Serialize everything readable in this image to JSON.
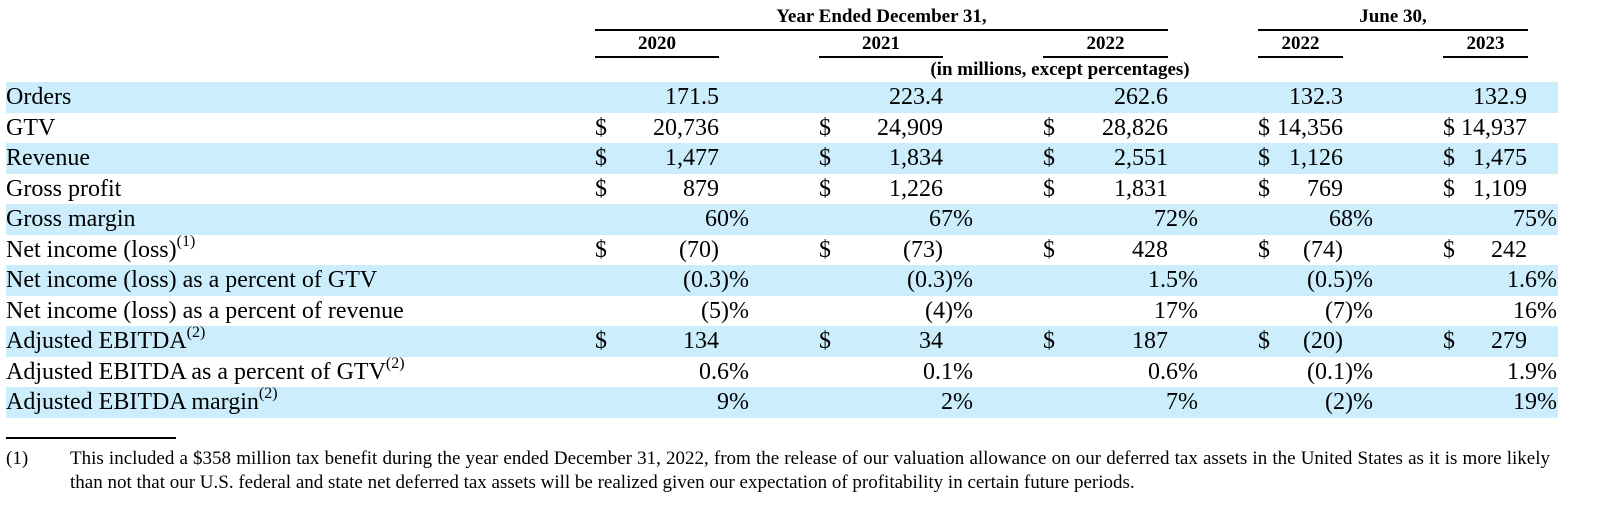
{
  "header": {
    "group_year": "Year Ended December 31,",
    "group_june": "June 30,",
    "years": [
      "2020",
      "2021",
      "2022",
      "2022",
      "2023"
    ],
    "units": "(in millions, except percentages)"
  },
  "rows": [
    {
      "label": "Orders",
      "sup": "",
      "cells": [
        {
          "d": "",
          "v": "171.5"
        },
        {
          "d": "",
          "v": "223.4"
        },
        {
          "d": "",
          "v": "262.6"
        },
        {
          "d": "",
          "v": "132.3"
        },
        {
          "d": "",
          "v": "132.9"
        }
      ]
    },
    {
      "label": "GTV",
      "sup": "",
      "cells": [
        {
          "d": "$",
          "v": "20,736"
        },
        {
          "d": "$",
          "v": "24,909"
        },
        {
          "d": "$",
          "v": "28,826"
        },
        {
          "d": "$",
          "v": "14,356"
        },
        {
          "d": "$",
          "v": "14,937"
        }
      ]
    },
    {
      "label": "Revenue",
      "sup": "",
      "cells": [
        {
          "d": "$",
          "v": "1,477"
        },
        {
          "d": "$",
          "v": "1,834"
        },
        {
          "d": "$",
          "v": "2,551"
        },
        {
          "d": "$",
          "v": "1,126"
        },
        {
          "d": "$",
          "v": "1,475"
        }
      ]
    },
    {
      "label": "Gross profit",
      "sup": "",
      "cells": [
        {
          "d": "$",
          "v": "879"
        },
        {
          "d": "$",
          "v": "1,226"
        },
        {
          "d": "$",
          "v": "1,831"
        },
        {
          "d": "$",
          "v": "769"
        },
        {
          "d": "$",
          "v": "1,109"
        }
      ]
    },
    {
      "label": "Gross margin",
      "sup": "",
      "cells": [
        {
          "d": "",
          "v": "60%"
        },
        {
          "d": "",
          "v": "67%"
        },
        {
          "d": "",
          "v": "72%"
        },
        {
          "d": "",
          "v": "68%"
        },
        {
          "d": "",
          "v": "75%"
        }
      ]
    },
    {
      "label": "Net income (loss)",
      "sup": "(1)",
      "cells": [
        {
          "d": "$",
          "v": "(70)"
        },
        {
          "d": "$",
          "v": "(73)"
        },
        {
          "d": "$",
          "v": "428"
        },
        {
          "d": "$",
          "v": "(74)"
        },
        {
          "d": "$",
          "v": "242"
        }
      ]
    },
    {
      "label": "Net income (loss) as a percent of GTV",
      "sup": "",
      "cells": [
        {
          "d": "",
          "v": "(0.3)%"
        },
        {
          "d": "",
          "v": "(0.3)%"
        },
        {
          "d": "",
          "v": "1.5%"
        },
        {
          "d": "",
          "v": "(0.5)%"
        },
        {
          "d": "",
          "v": "1.6%"
        }
      ]
    },
    {
      "label": "Net income (loss) as a percent of revenue",
      "sup": "",
      "cells": [
        {
          "d": "",
          "v": "(5)%"
        },
        {
          "d": "",
          "v": "(4)%"
        },
        {
          "d": "",
          "v": "17%"
        },
        {
          "d": "",
          "v": "(7)%"
        },
        {
          "d": "",
          "v": "16%"
        }
      ]
    },
    {
      "label": "Adjusted EBITDA",
      "sup": "(2)",
      "cells": [
        {
          "d": "$",
          "v": "134"
        },
        {
          "d": "$",
          "v": "34"
        },
        {
          "d": "$",
          "v": "187"
        },
        {
          "d": "$",
          "v": "(20)"
        },
        {
          "d": "$",
          "v": "279"
        }
      ]
    },
    {
      "label": "Adjusted EBITDA as a percent of GTV",
      "sup": "(2)",
      "cells": [
        {
          "d": "",
          "v": "0.6%"
        },
        {
          "d": "",
          "v": "0.1%"
        },
        {
          "d": "",
          "v": "0.6%"
        },
        {
          "d": "",
          "v": "(0.1)%"
        },
        {
          "d": "",
          "v": "1.9%"
        }
      ]
    },
    {
      "label": "Adjusted EBITDA margin",
      "sup": "(2)",
      "cells": [
        {
          "d": "",
          "v": "9%"
        },
        {
          "d": "",
          "v": "2%"
        },
        {
          "d": "",
          "v": "7%"
        },
        {
          "d": "",
          "v": "(2)%"
        },
        {
          "d": "",
          "v": "19%"
        }
      ]
    }
  ],
  "footnote": {
    "number": "(1)",
    "text": "This included a $358 million tax benefit during the year ended December 31, 2022, from the release of our valuation allowance on our deferred tax assets in the United States as it is more likely than not that our U.S. federal and state net deferred tax assets will be realized given our expectation of profitability in certain future periods."
  },
  "colors": {
    "row_shade": "#cceefc"
  }
}
